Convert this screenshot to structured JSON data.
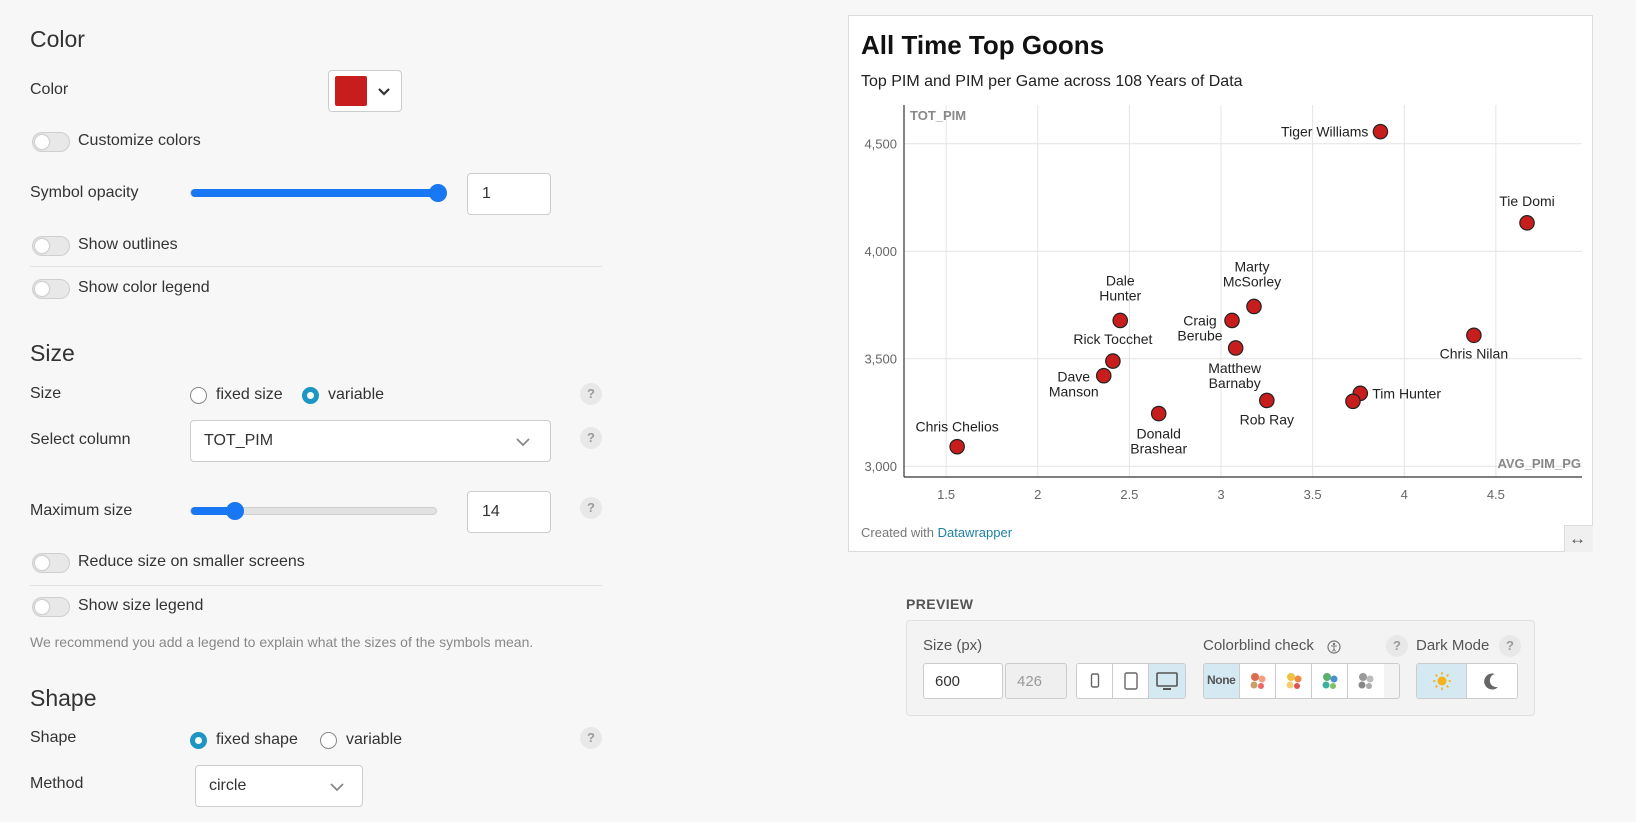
{
  "color": {
    "section_title": "Color",
    "color_label": "Color",
    "swatch_color": "#c71e1d",
    "customize_label": "Customize colors",
    "opacity_label": "Symbol opacity",
    "opacity_value": "1",
    "opacity_level": 1.0,
    "outlines_label": "Show outlines",
    "legend_label": "Show color legend"
  },
  "size": {
    "section_title": "Size",
    "size_label": "Size",
    "option_fixed": "fixed size",
    "option_variable": "variable",
    "selected": "variable",
    "column_label": "Select column",
    "column_value": "TOT_PIM",
    "max_label": "Maximum size",
    "max_value": "14",
    "max_level": 0.18,
    "reduce_label": "Reduce size on smaller screens",
    "legend_label": "Show size legend",
    "hint": "We recommend you add a legend to explain what the sizes of the symbols mean."
  },
  "shape": {
    "section_title": "Shape",
    "shape_label": "Shape",
    "option_fixed": "fixed shape",
    "option_variable": "variable",
    "selected": "fixed shape",
    "method_label": "Method",
    "method_value": "circle"
  },
  "help_glyph": "?",
  "chart": {
    "title": "All Time Top Goons",
    "subtitle": "Top PIM and PIM per Game across 108 Years of Data",
    "footer_prefix": "Created with ",
    "footer_link": "Datawrapper",
    "expand_icon": "↔"
  },
  "chart_data": {
    "type": "scatter",
    "xlabel": "AVG_PIM_PG",
    "ylabel": "TOT_PIM",
    "xlim": [
      1.27,
      4.97
    ],
    "ylim": [
      2950,
      4680
    ],
    "x_ticks": [
      1.5,
      2,
      2.5,
      3,
      3.5,
      4,
      4.5
    ],
    "x_tick_labels": [
      "1.5",
      "2",
      "2.5",
      "3",
      "3.5",
      "4",
      "4.5"
    ],
    "y_ticks": [
      3000,
      3500,
      4000,
      4500
    ],
    "y_tick_labels": [
      "3,000",
      "3,500",
      "4,000",
      "4,500"
    ],
    "grid": true,
    "marker_color": "#c71e1d",
    "points": [
      {
        "x": 3.87,
        "y": 4556,
        "label": [
          "Tiger Williams"
        ]
      },
      {
        "x": 4.67,
        "y": 4132,
        "label": [
          "Tie Domi"
        ]
      },
      {
        "x": 4.38,
        "y": 3609,
        "label": [
          "Chris Nilan"
        ]
      },
      {
        "x": 3.18,
        "y": 3743,
        "label": [
          "Marty",
          "McSorley"
        ]
      },
      {
        "x": 3.06,
        "y": 3678,
        "label": [
          "Craig",
          "Berube"
        ]
      },
      {
        "x": 2.45,
        "y": 3678,
        "label": [
          "Dale",
          "Hunter"
        ]
      },
      {
        "x": 3.08,
        "y": 3550,
        "label": [
          "Matthew",
          "Barnaby"
        ]
      },
      {
        "x": 2.41,
        "y": 3489,
        "label": [
          "Rick Tocchet"
        ]
      },
      {
        "x": 2.36,
        "y": 3421,
        "label": [
          "Dave",
          "Manson"
        ]
      },
      {
        "x": 3.76,
        "y": 3339,
        "label": [
          "Tim Hunter"
        ]
      },
      {
        "x": 3.72,
        "y": 3302,
        "label": []
      },
      {
        "x": 3.25,
        "y": 3306,
        "label": [
          "Rob Ray"
        ]
      },
      {
        "x": 2.66,
        "y": 3245,
        "label": [
          "Donald",
          "Brashear"
        ]
      },
      {
        "x": 1.56,
        "y": 3091,
        "label": [
          "Chris Chelios"
        ]
      }
    ]
  },
  "preview": {
    "title": "PREVIEW",
    "size_label": "Size (px)",
    "width_value": "600",
    "height_value": "426",
    "colorblind_label": "Colorblind check",
    "colorblind_none": "None",
    "darkmode_label": "Dark Mode"
  }
}
